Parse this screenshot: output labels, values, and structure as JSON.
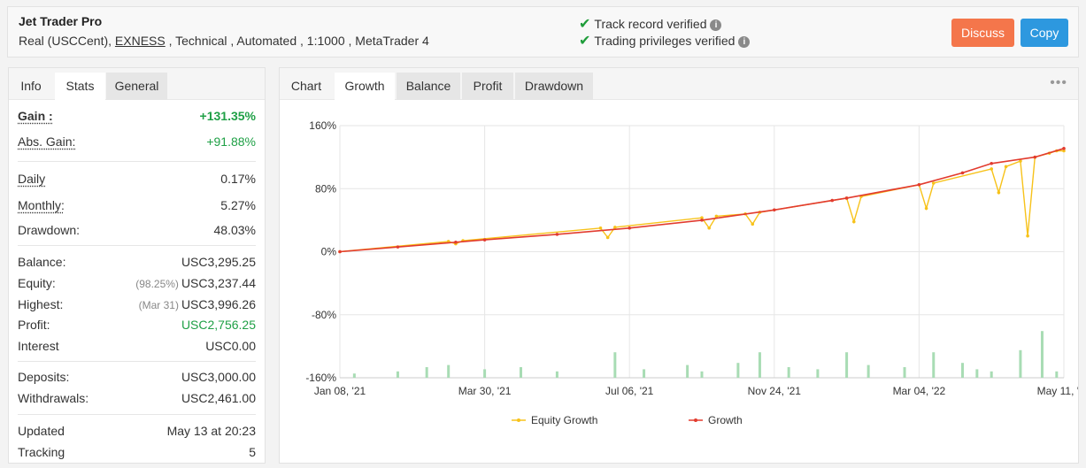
{
  "header": {
    "name": "Jet Trader Pro",
    "meta_prefix": "Real (USCCent), ",
    "broker": "EXNESS",
    "meta_suffix": " , Technical , Automated , 1:1000 , MetaTrader 4",
    "verified_1": "Track record verified",
    "verified_2": "Trading privileges verified",
    "discuss_label": "Discuss",
    "copy_label": "Copy"
  },
  "left_tabs": [
    "Info",
    "Stats",
    "General"
  ],
  "stats": {
    "gain_label": "Gain :",
    "gain": "+131.35%",
    "abs_gain_label": "Abs. Gain:",
    "abs_gain": "+91.88%",
    "daily_label": "Daily",
    "daily": "0.17%",
    "monthly_label": "Monthly:",
    "monthly": "5.27%",
    "drawdown_label": "Drawdown:",
    "drawdown": "48.03%",
    "balance_label": "Balance:",
    "balance": "USC3,295.25",
    "equity_label": "Equity:",
    "equity_note": "(98.25%)",
    "equity": "USC3,237.44",
    "highest_label": "Highest:",
    "highest_note": "(Mar 31)",
    "highest": "USC3,996.26",
    "profit_label": "Profit:",
    "profit": "USC2,756.25",
    "interest_label": "Interest",
    "interest": "USC0.00",
    "deposits_label": "Deposits:",
    "deposits": "USC3,000.00",
    "withdrawals_label": "Withdrawals:",
    "withdrawals": "USC2,461.00",
    "updated_label": "Updated",
    "updated": "May 13 at 20:23",
    "tracking_label": "Tracking",
    "tracking": "5"
  },
  "chart_tabs": [
    "Chart",
    "Growth",
    "Balance",
    "Profit",
    "Drawdown"
  ],
  "colors": {
    "growth": "#e23b2e",
    "equity": "#f7c21a",
    "bars": "#a8dcb4",
    "grid": "#e6e6e6"
  },
  "chart_data": {
    "type": "line",
    "x_ticks": [
      "Jan 08, '21",
      "Mar 30, '21",
      "Jul 06, '21",
      "Nov 24, '21",
      "Mar 04, '22",
      "May 11, '22"
    ],
    "y_ticks": [
      "160%",
      "80%",
      "0%",
      "-80%",
      "-160%"
    ],
    "ylim": [
      -160,
      160
    ],
    "series": [
      {
        "name": "Growth",
        "x": [
          0,
          0.08,
          0.16,
          0.2,
          0.3,
          0.4,
          0.5,
          0.6,
          0.68,
          0.7,
          0.8,
          0.86,
          0.9,
          0.96,
          1.0
        ],
        "y": [
          0,
          6,
          12,
          15,
          22,
          30,
          40,
          53,
          65,
          68,
          85,
          100,
          112,
          120,
          131
        ]
      },
      {
        "name": "Equity Growth",
        "x": [
          0,
          0.15,
          0.16,
          0.17,
          0.36,
          0.37,
          0.38,
          0.5,
          0.51,
          0.52,
          0.56,
          0.57,
          0.58,
          0.7,
          0.71,
          0.72,
          0.8,
          0.81,
          0.82,
          0.9,
          0.91,
          0.92,
          0.94,
          0.95,
          0.96,
          0.98,
          0.99,
          1.0
        ],
        "y": [
          0,
          13,
          10,
          14,
          30,
          18,
          31,
          43,
          30,
          45,
          48,
          35,
          50,
          68,
          38,
          70,
          85,
          55,
          87,
          105,
          75,
          108,
          115,
          20,
          120,
          125,
          128,
          128
        ]
      }
    ],
    "bars": {
      "x": [
        0.02,
        0.08,
        0.12,
        0.15,
        0.2,
        0.25,
        0.3,
        0.38,
        0.42,
        0.48,
        0.5,
        0.55,
        0.58,
        0.62,
        0.66,
        0.7,
        0.73,
        0.78,
        0.82,
        0.86,
        0.88,
        0.9,
        0.94,
        0.97,
        0.99
      ],
      "y": [
        4,
        6,
        10,
        12,
        8,
        10,
        6,
        24,
        8,
        12,
        6,
        14,
        24,
        10,
        8,
        24,
        12,
        10,
        24,
        14,
        8,
        6,
        26,
        44,
        6
      ],
      "ylim": [
        0,
        50
      ]
    },
    "legend": [
      "Equity Growth",
      "Growth"
    ]
  }
}
